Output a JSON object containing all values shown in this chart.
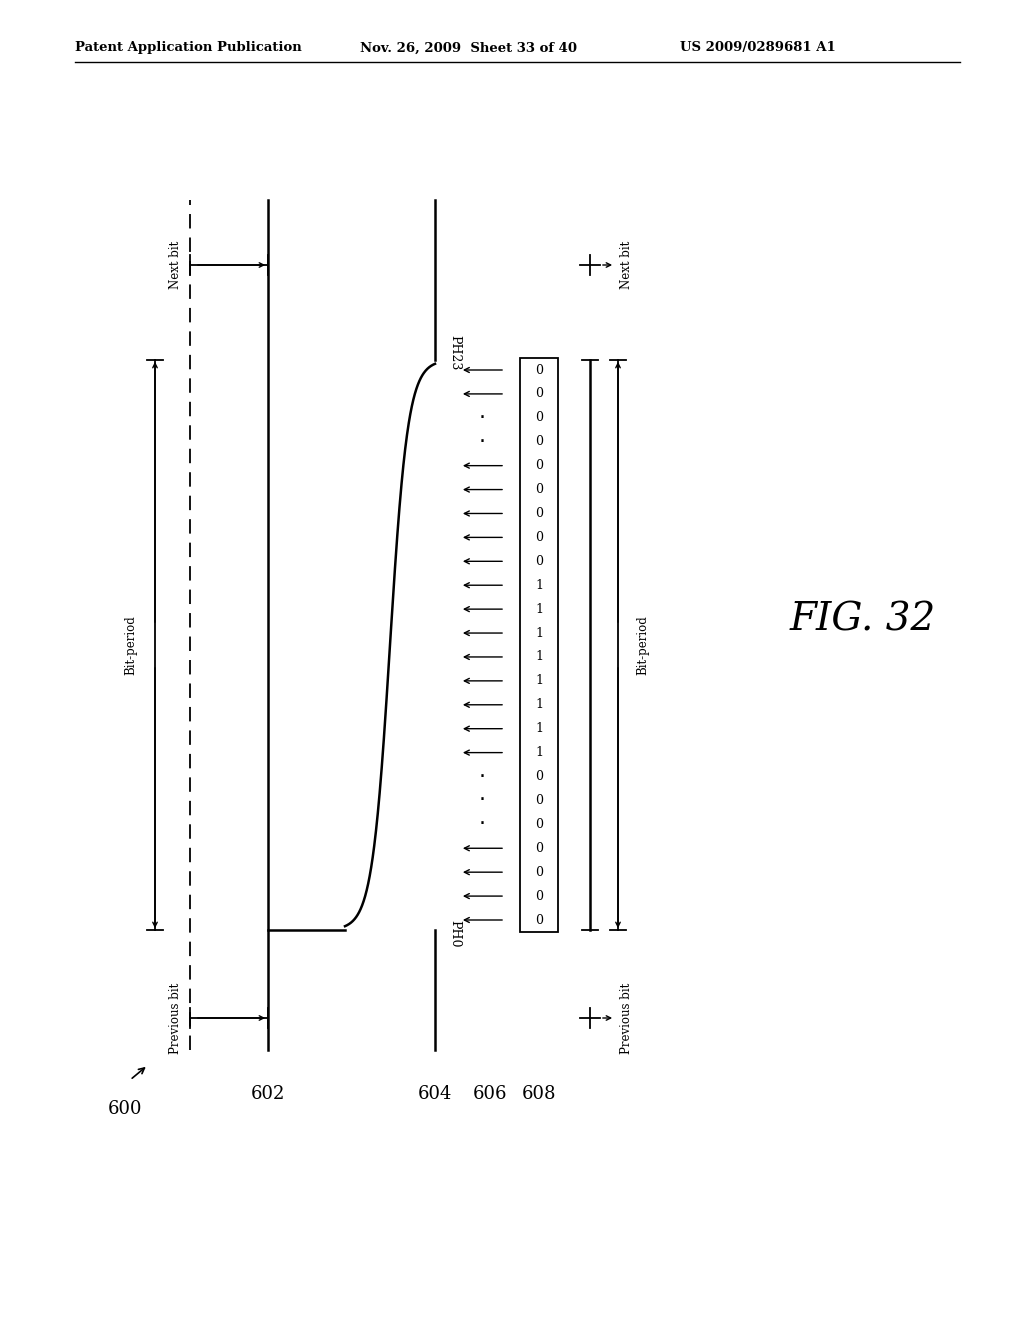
{
  "title_left": "Patent Application Publication",
  "title_mid": "Nov. 26, 2009  Sheet 33 of 40",
  "title_right": "US 2009/0289681 A1",
  "fig_label": "FIG. 32",
  "ref_600": "600",
  "ref_602": "602",
  "ref_604": "604",
  "ref_606": "606",
  "ref_608": "608",
  "label_bit_period_left": "Bit-period",
  "label_next_bit_left": "Next bit",
  "label_prev_bit_left": "Previous bit",
  "label_bit_period_right": "Bit-period",
  "label_next_bit_right": "Next bit",
  "label_prev_bit_right": "Previous bit",
  "label_PH0": "PH0",
  "label_PH23": "PH23",
  "bg_color": "#ffffff",
  "line_color": "#000000",
  "bit_values_bottom_to_top": [
    "0",
    "0",
    "0",
    "0",
    "0",
    "0",
    "0",
    "1",
    "1",
    "1",
    "1",
    "1",
    "1",
    "1",
    "1",
    "0",
    "0",
    "0",
    "0",
    "0",
    "0",
    "0",
    "0",
    "0"
  ]
}
